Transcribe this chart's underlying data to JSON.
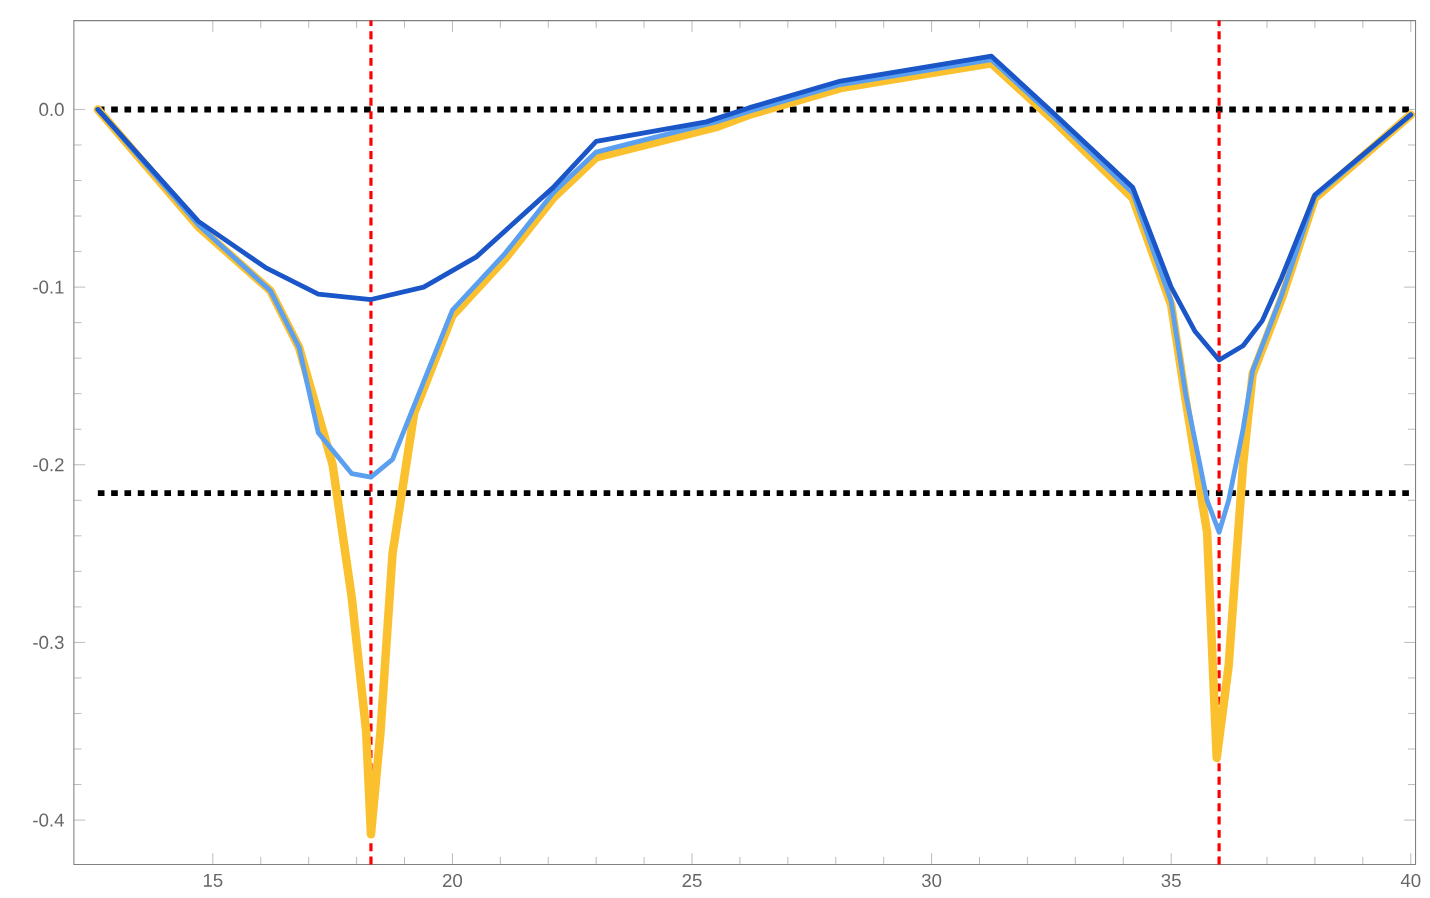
{
  "chart_data": {
    "type": "line",
    "xlim": [
      12.1,
      40.1
    ],
    "ylim": [
      -0.425,
      0.05
    ],
    "xticks": [
      15,
      20,
      25,
      30,
      35,
      40
    ],
    "yticks": [
      {
        "value": 0,
        "label": "0.0"
      },
      {
        "value": -0.1,
        "label": "-0.1"
      },
      {
        "value": -0.2,
        "label": "-0.2"
      },
      {
        "value": -0.3,
        "label": "-0.3"
      },
      {
        "value": -0.4,
        "label": "-0.4"
      }
    ],
    "grid": false,
    "marker": "none",
    "line_style": "solid",
    "series": [
      {
        "color": "#fbc02d",
        "x": [
          12.6,
          14.7,
          16.2,
          16.8,
          17.5,
          17.9,
          18.2,
          18.3,
          18.5,
          18.75,
          19.2,
          20.0,
          21.1,
          22.1,
          23.0,
          25.5,
          26.2,
          28.1,
          29.9,
          31.25,
          32.5,
          34.2,
          35.0,
          35.3,
          35.75,
          35.95,
          36.2,
          36.5,
          36.7,
          37.3,
          38.0,
          40.0
        ],
        "values": [
          0,
          -0.066,
          -0.102,
          -0.134,
          -0.2,
          -0.275,
          -0.35,
          -0.408,
          -0.35,
          -0.25,
          -0.171,
          -0.116,
          -0.084,
          -0.05,
          -0.027,
          -0.01,
          -0.003,
          0.012,
          0.02,
          0.026,
          -0.005,
          -0.05,
          -0.11,
          -0.163,
          -0.238,
          -0.365,
          -0.313,
          -0.2,
          -0.149,
          -0.107,
          -0.05,
          -0.003
        ]
      },
      {
        "color": "#5a9ff0",
        "x": [
          12.6,
          14.7,
          16.2,
          16.8,
          17.2,
          17.9,
          18.3,
          18.75,
          19.3,
          20.0,
          21.1,
          22.1,
          23.0,
          25.5,
          26.2,
          28.1,
          29.9,
          31.25,
          32.5,
          34.2,
          35.0,
          35.3,
          35.75,
          36.0,
          36.2,
          36.5,
          36.7,
          37.3,
          38.0,
          40.0
        ],
        "values": [
          0,
          -0.065,
          -0.102,
          -0.134,
          -0.182,
          -0.205,
          -0.207,
          -0.197,
          -0.16,
          -0.113,
          -0.081,
          -0.047,
          -0.024,
          -0.007,
          -0.001,
          0.014,
          0.022,
          0.028,
          -0.003,
          -0.047,
          -0.108,
          -0.16,
          -0.22,
          -0.238,
          -0.22,
          -0.18,
          -0.147,
          -0.105,
          -0.049,
          -0.003
        ]
      },
      {
        "color": "#1a56c8",
        "x": [
          12.6,
          14.7,
          16.1,
          17.2,
          18.3,
          19.4,
          20.5,
          22.1,
          23.0,
          25.3,
          26.2,
          28.1,
          29.9,
          31.25,
          32.5,
          34.2,
          35.0,
          35.5,
          36.0,
          36.5,
          36.9,
          37.3,
          38.0,
          40.0
        ],
        "values": [
          0,
          -0.063,
          -0.089,
          -0.104,
          -0.107,
          -0.1,
          -0.083,
          -0.044,
          -0.018,
          -0.007,
          0.001,
          0.016,
          0.024,
          0.03,
          -0.001,
          -0.044,
          -0.1,
          -0.125,
          -0.141,
          -0.133,
          -0.119,
          -0.095,
          -0.048,
          -0.003
        ]
      }
    ],
    "ref_lines": [
      {
        "axis": "y",
        "value": 0,
        "color": "#000000",
        "line_style": "dotted"
      },
      {
        "axis": "y",
        "value": -0.216,
        "color": "#000000",
        "line_style": "dotted"
      },
      {
        "axis": "x",
        "value": 18.3,
        "color": "#ff0000",
        "line_style": "dashed"
      },
      {
        "axis": "x",
        "value": 36.0,
        "color": "#ff0000",
        "line_style": "dashed"
      }
    ]
  }
}
